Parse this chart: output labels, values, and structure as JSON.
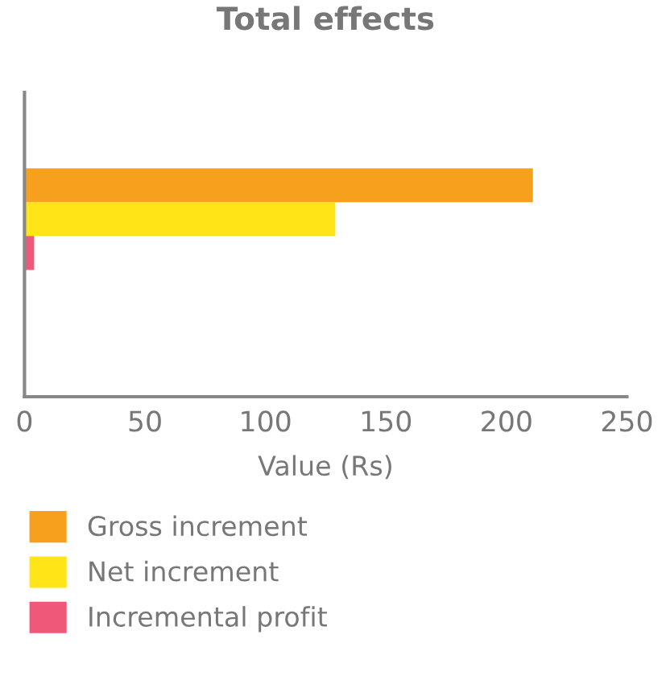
{
  "chart_data": {
    "type": "bar",
    "orientation": "horizontal",
    "title": "Total effects",
    "xlabel": "Value (Rs)",
    "categories": [
      null
    ],
    "series": [
      {
        "name": "Gross increment",
        "color": "#f7a01e",
        "values": [
          211
        ]
      },
      {
        "name": "Net increment",
        "color": "#ffe418",
        "values": [
          129
        ]
      },
      {
        "name": "Incremental profit",
        "color": "#f0587a",
        "values": [
          4
        ]
      }
    ],
    "xlim": [
      0,
      250
    ],
    "xticks": [
      0,
      50,
      100,
      150,
      200,
      250
    ],
    "grid": false,
    "legend": "bottom"
  }
}
